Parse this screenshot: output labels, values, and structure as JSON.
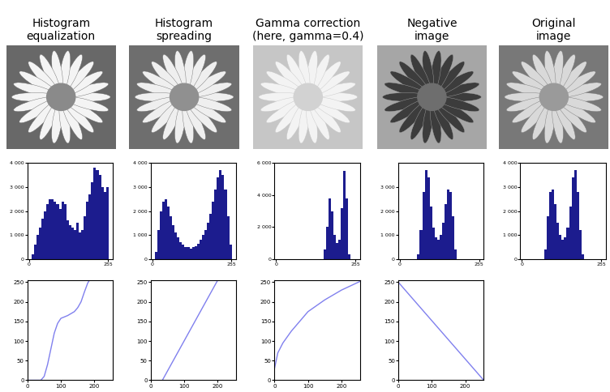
{
  "chart_data": [
    {
      "type": "histogram",
      "title": "Histogram\nequalization",
      "bins": [
        0,
        8,
        16,
        24,
        32,
        40,
        48,
        56,
        64,
        72,
        80,
        88,
        96,
        104,
        112,
        120,
        128,
        136,
        144,
        152,
        160,
        168,
        176,
        184,
        192,
        200,
        208,
        216,
        224,
        232,
        240,
        248,
        256
      ],
      "counts": [
        0,
        200,
        600,
        1000,
        1300,
        1700,
        2000,
        2300,
        2500,
        2500,
        2400,
        2300,
        2100,
        2400,
        2300,
        1600,
        1400,
        1300,
        1200,
        1500,
        1100,
        1200,
        1800,
        2400,
        2700,
        3200,
        3800,
        3700,
        3500,
        3000,
        2800,
        3000
      ],
      "color": "#1c1c8e",
      "xlim": [
        -5,
        270
      ],
      "xticks": [
        0,
        255
      ],
      "ylim": [
        0,
        4000
      ],
      "yticks": [
        0,
        {
          "value": 1000,
          "label": "1 000"
        },
        {
          "value": 2000,
          "label": "2 000"
        },
        {
          "value": 3000,
          "label": "3 000"
        },
        {
          "value": 4000,
          "label": "4 000"
        }
      ]
    },
    {
      "type": "histogram",
      "title": "Histogram\nspreading",
      "bins": [
        0,
        8,
        16,
        24,
        32,
        40,
        48,
        56,
        64,
        72,
        80,
        88,
        96,
        104,
        112,
        120,
        128,
        136,
        144,
        152,
        160,
        168,
        176,
        184,
        192,
        200,
        208,
        216,
        224,
        232,
        240,
        248,
        256
      ],
      "counts": [
        0,
        300,
        1200,
        2000,
        2400,
        2500,
        2200,
        1800,
        1400,
        1100,
        900,
        700,
        600,
        500,
        500,
        450,
        500,
        550,
        650,
        800,
        1000,
        1200,
        1500,
        1900,
        2400,
        2900,
        3400,
        3700,
        3500,
        2900,
        1800,
        600
      ],
      "color": "#1c1c8e",
      "xlim": [
        -5,
        270
      ],
      "xticks": [
        0,
        255
      ],
      "ylim": [
        0,
        4000
      ],
      "yticks": [
        0,
        {
          "value": 1000,
          "label": "1 000"
        },
        {
          "value": 2000,
          "label": "2 000"
        },
        {
          "value": 3000,
          "label": "3 000"
        },
        {
          "value": 4000,
          "label": "4 000"
        }
      ]
    },
    {
      "type": "histogram",
      "title": "Gamma correction\n(here, gamma=0.4)",
      "bins": [
        0,
        8,
        16,
        24,
        32,
        40,
        48,
        56,
        64,
        72,
        80,
        88,
        96,
        104,
        112,
        120,
        128,
        136,
        144,
        152,
        160,
        168,
        176,
        184,
        192,
        200,
        208,
        216,
        224,
        232,
        240,
        248,
        256
      ],
      "counts": [
        0,
        0,
        0,
        0,
        0,
        0,
        0,
        0,
        0,
        0,
        0,
        0,
        0,
        0,
        0,
        0,
        0,
        0,
        0,
        600,
        2000,
        3800,
        3000,
        1500,
        1000,
        1200,
        3200,
        5500,
        3800,
        300,
        0,
        0
      ],
      "color": "#1c1c8e",
      "xlim": [
        -5,
        270
      ],
      "xticks": [
        0,
        255
      ],
      "ylim": [
        0,
        6000
      ],
      "yticks": [
        0,
        {
          "value": 2000,
          "label": "2 000"
        },
        {
          "value": 4000,
          "label": "4 000"
        },
        {
          "value": 6000,
          "label": "6 000"
        }
      ]
    },
    {
      "type": "histogram",
      "title": "Negative\nimage",
      "bins": [
        0,
        8,
        16,
        24,
        32,
        40,
        48,
        56,
        64,
        72,
        80,
        88,
        96,
        104,
        112,
        120,
        128,
        136,
        144,
        152,
        160,
        168,
        176,
        184,
        192,
        200,
        208,
        216,
        224,
        232,
        240,
        248,
        256
      ],
      "counts": [
        0,
        0,
        0,
        0,
        0,
        0,
        0,
        200,
        1200,
        2800,
        3700,
        3400,
        2200,
        1300,
        900,
        800,
        1000,
        1500,
        2300,
        2900,
        2800,
        1800,
        400,
        0,
        0,
        0,
        0,
        0,
        0,
        0,
        0,
        0
      ],
      "color": "#1c1c8e",
      "xlim": [
        -5,
        270
      ],
      "xticks": [
        0,
        255
      ],
      "ylim": [
        0,
        4000
      ],
      "yticks": [
        0,
        {
          "value": 1000,
          "label": "1 000"
        },
        {
          "value": 2000,
          "label": "2 000"
        },
        {
          "value": 3000,
          "label": "3 000"
        }
      ]
    },
    {
      "type": "histogram",
      "title": "Original\nimage",
      "bins": [
        0,
        8,
        16,
        24,
        32,
        40,
        48,
        56,
        64,
        72,
        80,
        88,
        96,
        104,
        112,
        120,
        128,
        136,
        144,
        152,
        160,
        168,
        176,
        184,
        192,
        200,
        208,
        216,
        224,
        232,
        240,
        248,
        256
      ],
      "counts": [
        0,
        0,
        0,
        0,
        0,
        0,
        0,
        0,
        0,
        400,
        1800,
        2800,
        2900,
        2300,
        1500,
        1000,
        800,
        900,
        1300,
        2200,
        3400,
        3700,
        2800,
        1200,
        200,
        0,
        0,
        0,
        0,
        0,
        0,
        0
      ],
      "color": "#1c1c8e",
      "xlim": [
        -5,
        270
      ],
      "xticks": [
        0,
        255
      ],
      "ylim": [
        0,
        4000
      ],
      "yticks": [
        0,
        {
          "value": 1000,
          "label": "1 000"
        },
        {
          "value": 2000,
          "label": "2 000"
        },
        {
          "value": 3000,
          "label": "3 000"
        },
        {
          "value": 4000,
          "label": "4 000"
        }
      ]
    },
    {
      "type": "line",
      "x": [
        0,
        40,
        50,
        60,
        70,
        80,
        90,
        100,
        120,
        140,
        150,
        160,
        170,
        180,
        185,
        255
      ],
      "values": [
        0,
        0,
        10,
        40,
        80,
        120,
        145,
        158,
        165,
        175,
        185,
        200,
        225,
        248,
        255,
        255
      ],
      "color": "#8080ee",
      "xlim": [
        0,
        255
      ],
      "xticks": [
        0,
        100,
        200
      ],
      "ylim": [
        0,
        255
      ],
      "yticks": [
        0,
        50,
        100,
        150,
        200,
        250
      ]
    },
    {
      "type": "line",
      "x": [
        35,
        200
      ],
      "values": [
        0,
        255
      ],
      "color": "#8080ee",
      "xlim": [
        0,
        255
      ],
      "xticks": [
        0,
        100,
        200
      ],
      "ylim": [
        0,
        255
      ],
      "yticks": [
        0,
        50,
        100,
        150,
        200,
        250
      ]
    },
    {
      "type": "line",
      "x": [
        0,
        10,
        25,
        50,
        75,
        100,
        150,
        200,
        255
      ],
      "values": [
        30,
        70,
        95,
        125,
        150,
        175,
        205,
        230,
        252
      ],
      "color": "#8080ee",
      "xlim": [
        0,
        255
      ],
      "xticks": [
        0,
        100,
        200
      ],
      "ylim": [
        0,
        255
      ],
      "yticks": [
        0,
        50,
        100,
        150,
        200,
        250
      ]
    },
    {
      "type": "line",
      "x": [
        0,
        255
      ],
      "values": [
        250,
        0
      ],
      "color": "#8080ee",
      "xlim": [
        0,
        255
      ],
      "xticks": [
        0,
        100,
        200
      ],
      "ylim": [
        0,
        255
      ],
      "yticks": [
        0,
        50,
        100,
        150,
        200,
        250
      ]
    }
  ]
}
